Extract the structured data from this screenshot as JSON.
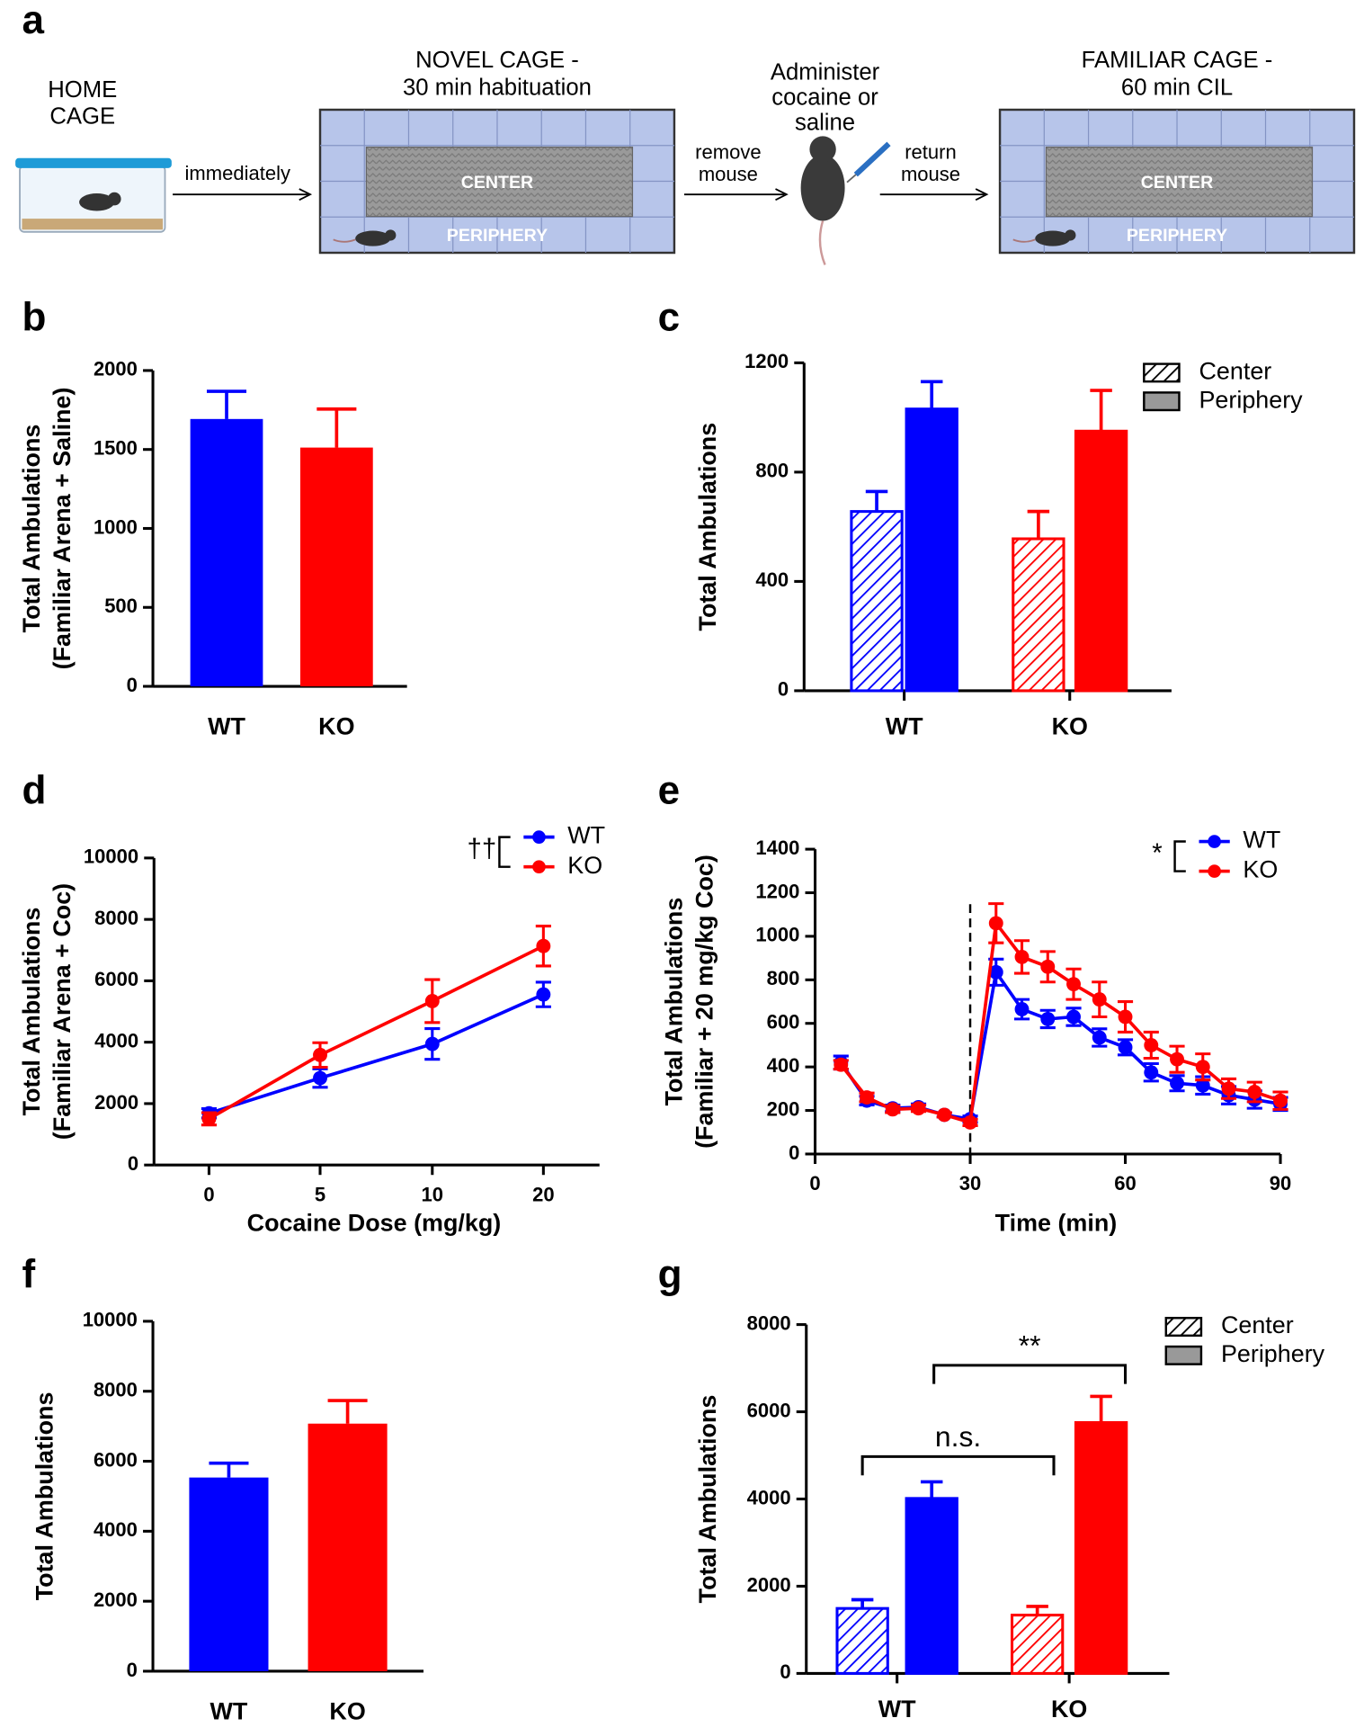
{
  "diagram": {
    "label": "a",
    "home_cage": [
      "HOME",
      "CAGE"
    ],
    "arrow_1": "immediately",
    "novel_cage": {
      "title": [
        "NOVEL CAGE -",
        "30 min habituation"
      ],
      "center": "CENTER",
      "periphery": "PERIPHERY"
    },
    "arrow_2": [
      "remove",
      "mouse"
    ],
    "injection": [
      "Administer",
      "cocaine or",
      "saline"
    ],
    "arrow_3": [
      "return",
      "mouse"
    ],
    "familiar_cage": {
      "title": [
        "FAMILIAR CAGE -",
        "60 min CIL"
      ],
      "center": "CENTER",
      "periphery": "PERIPHERY"
    }
  },
  "chart_data": [
    {
      "type": "bar",
      "label": "b",
      "y_label": [
        "Total Ambulations",
        "(Familiar Arena + Saline)"
      ],
      "categories": [
        "WT",
        "KO"
      ],
      "values": [
        1693,
        1512
      ],
      "errors": [
        175,
        244
      ],
      "colors": [
        "#0000ff",
        "#ff0000"
      ],
      "ylim": [
        0,
        2000
      ],
      "yticks": [
        0,
        500,
        1000,
        1500,
        2000
      ]
    },
    {
      "type": "grouped_bar",
      "label": "c",
      "y_label": [
        "Total Ambulations"
      ],
      "categories": [
        "WT",
        "KO"
      ],
      "colors": [
        "#0000ff",
        "#ff0000"
      ],
      "series": [
        {
          "name": "Center",
          "pattern": "hatch",
          "values": [
            656,
            556
          ],
          "errors": [
            73,
            100
          ]
        },
        {
          "name": "Periphery",
          "pattern": "solid",
          "values": [
            1031,
            950
          ],
          "errors": [
            100,
            149
          ]
        }
      ],
      "ylim": [
        0,
        1200
      ],
      "yticks": [
        0,
        400,
        800,
        1200
      ],
      "legend": "top-right"
    },
    {
      "type": "line",
      "label": "d",
      "y_label": [
        "Total Ambulations",
        "(Familiar Arena + Coc)"
      ],
      "x_label": "Cocaine Dose (mg/kg)",
      "categories": [
        "0",
        "5",
        "10",
        "20"
      ],
      "series": [
        {
          "name": "WT",
          "color": "#0000ff",
          "values": [
            1685,
            2832,
            3943,
            5556
          ],
          "errors": [
            150,
            300,
            500,
            400
          ]
        },
        {
          "name": "KO",
          "color": "#ff0000",
          "values": [
            1505,
            3584,
            5340,
            7133
          ],
          "errors": [
            200,
            400,
            700,
            650
          ]
        }
      ],
      "ylim": [
        0,
        10000
      ],
      "yticks": [
        0,
        2000,
        4000,
        6000,
        8000,
        10000
      ],
      "legend": "top-right",
      "legend_annotation": "††"
    },
    {
      "type": "line",
      "label": "e",
      "y_label": [
        "Total Ambulations",
        "(Familiar + 20 mg/kg Coc)"
      ],
      "x_label": "Time (min)",
      "x": [
        5,
        10,
        15,
        20,
        25,
        30,
        35,
        40,
        45,
        50,
        55,
        60,
        65,
        70,
        75,
        80,
        85,
        90
      ],
      "series": [
        {
          "name": "WT",
          "color": "#0000ff",
          "values": [
            420,
            245,
            210,
            215,
            180,
            160,
            835,
            665,
            620,
            630,
            535,
            490,
            375,
            325,
            315,
            270,
            250,
            230
          ],
          "errors": [
            30,
            20,
            15,
            15,
            10,
            15,
            60,
            45,
            40,
            40,
            40,
            35,
            40,
            35,
            40,
            40,
            40,
            30
          ]
        },
        {
          "name": "KO",
          "color": "#ff0000",
          "values": [
            410,
            260,
            205,
            210,
            180,
            145,
            1060,
            905,
            860,
            780,
            710,
            630,
            500,
            435,
            400,
            300,
            285,
            245
          ],
          "errors": [
            20,
            20,
            15,
            15,
            10,
            15,
            90,
            75,
            70,
            70,
            80,
            70,
            60,
            60,
            60,
            45,
            45,
            40
          ]
        }
      ],
      "xlim": [
        0,
        90
      ],
      "xticks": [
        0,
        30,
        60,
        90
      ],
      "vline": 30,
      "ylim": [
        0,
        1400
      ],
      "yticks": [
        0,
        200,
        400,
        600,
        800,
        1000,
        1200,
        1400
      ],
      "legend": "top-right",
      "legend_annotation": "*"
    },
    {
      "type": "bar",
      "label": "f",
      "y_label": [
        "Total Ambulations"
      ],
      "categories": [
        "WT",
        "KO"
      ],
      "values": [
        5535,
        7075
      ],
      "errors": [
        410,
        660
      ],
      "colors": [
        "#0000ff",
        "#ff0000"
      ],
      "ylim": [
        0,
        10000
      ],
      "yticks": [
        0,
        2000,
        4000,
        6000,
        8000,
        10000
      ]
    },
    {
      "type": "grouped_bar",
      "label": "g",
      "y_label": [
        "Total Ambulations"
      ],
      "categories": [
        "WT",
        "KO"
      ],
      "colors": [
        "#0000ff",
        "#ff0000"
      ],
      "series": [
        {
          "name": "Center",
          "pattern": "hatch",
          "values": [
            1490,
            1337
          ],
          "errors": [
            200,
            200
          ]
        },
        {
          "name": "Periphery",
          "pattern": "solid",
          "values": [
            4013,
            5753
          ],
          "errors": [
            380,
            600
          ]
        }
      ],
      "ylim": [
        0,
        8000
      ],
      "yticks": [
        0,
        2000,
        4000,
        6000,
        8000
      ],
      "legend": "top-right",
      "annotations": [
        "n.s.",
        "**"
      ]
    }
  ]
}
